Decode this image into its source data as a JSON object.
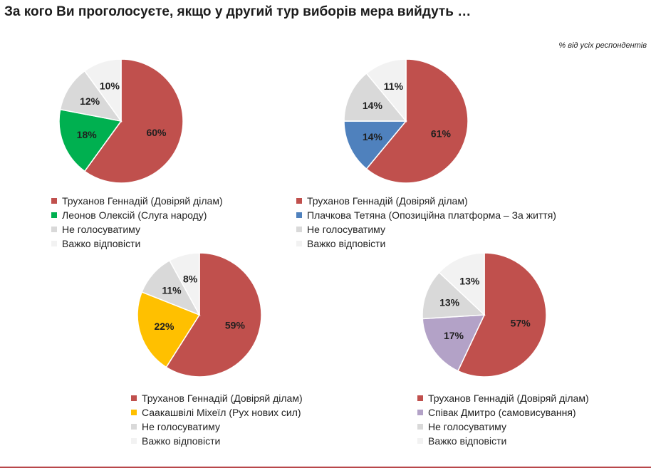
{
  "header": {
    "title": "За кого Ви проголосуєте, якщо у другий тур виборів мера вийдуть …",
    "subtitle": "% від усіх респондентів"
  },
  "colors": {
    "trukhanov": "#c0504d",
    "leonov": "#00b050",
    "plachkova": "#4f81bd",
    "saakashvili": "#ffc000",
    "spivak": "#b3a2c7",
    "ne_holosuvatymu": "#d9d9d9",
    "vazhko": "#f2f2f2"
  },
  "chart_data": [
    {
      "type": "pie",
      "categories": [
        "Труханов Геннадій (Довіряй ділам)",
        "Леонов Олексій (Слуга народу)",
        "Не голосуватиму",
        "Важко відповісти"
      ],
      "values": [
        60,
        18,
        12,
        10
      ],
      "labels": [
        "60%",
        "18%",
        "12%",
        "10%"
      ],
      "colors": [
        "#c0504d",
        "#00b050",
        "#d9d9d9",
        "#f2f2f2"
      ]
    },
    {
      "type": "pie",
      "categories": [
        "Труханов Геннадій (Довіряй ділам)",
        "Плачкова Тетяна (Опозиційна платформа – За життя)",
        "Не голосуватиму",
        "Важко відповісти"
      ],
      "values": [
        61,
        14,
        14,
        11
      ],
      "labels": [
        "61%",
        "14%",
        "14%",
        "11%"
      ],
      "colors": [
        "#c0504d",
        "#4f81bd",
        "#d9d9d9",
        "#f2f2f2"
      ]
    },
    {
      "type": "pie",
      "categories": [
        "Труханов Геннадій (Довіряй ділам)",
        "Саакашвілі Міхеїл (Рух нових сил)",
        "Не голосуватиму",
        "Важко відповісти"
      ],
      "values": [
        59,
        22,
        11,
        8
      ],
      "labels": [
        "59%",
        "22%",
        "11%",
        "8%"
      ],
      "colors": [
        "#c0504d",
        "#ffc000",
        "#d9d9d9",
        "#f2f2f2"
      ]
    },
    {
      "type": "pie",
      "categories": [
        "Труханов Геннадій (Довіряй ділам)",
        "Співак Дмитро (самовисування)",
        "Не голосуватиму",
        "Важко відповісти"
      ],
      "values": [
        57,
        17,
        13,
        13
      ],
      "labels": [
        "57%",
        "17%",
        "13%",
        "13%"
      ],
      "colors": [
        "#c0504d",
        "#b3a2c7",
        "#d9d9d9",
        "#f2f2f2"
      ]
    }
  ]
}
